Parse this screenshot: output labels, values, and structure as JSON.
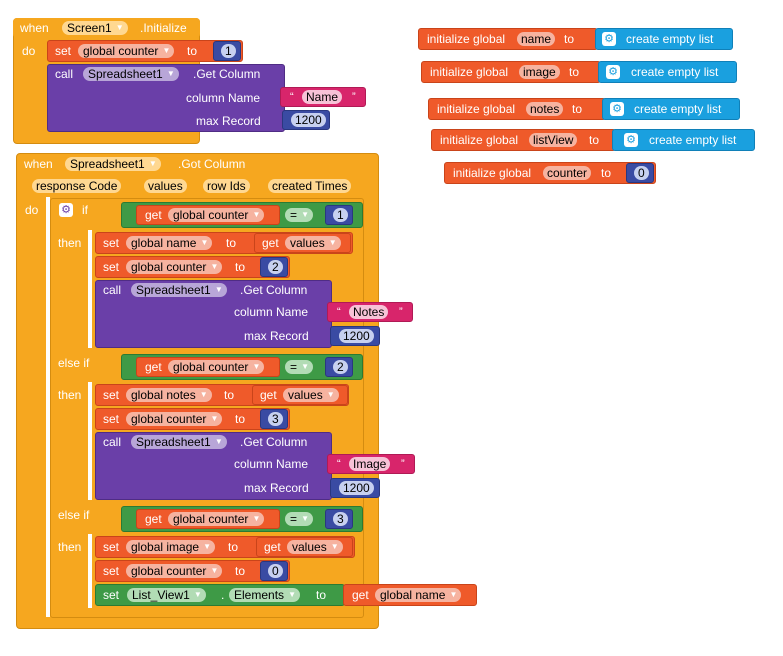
{
  "screen_init": {
    "when": "when",
    "component": "Screen1",
    "event": ".Initialize",
    "do": "do",
    "set": "set",
    "var": "global counter",
    "to": "to",
    "value": "1",
    "call": "call",
    "call_component": "Spreadsheet1",
    "method": ".Get Column",
    "param1_label": "column Name",
    "param1_value": "Name",
    "param2_label": "max Record",
    "param2_value": "1200"
  },
  "globals": [
    {
      "init": "initialize global",
      "name": "name",
      "to": "to",
      "value": "create empty list"
    },
    {
      "init": "initialize global",
      "name": "image",
      "to": "to",
      "value": "create empty list"
    },
    {
      "init": "initialize global",
      "name": "notes",
      "to": "to",
      "value": "create empty list"
    },
    {
      "init": "initialize global",
      "name": "listView",
      "to": "to",
      "value": "create empty list"
    },
    {
      "init": "initialize global",
      "name": "counter",
      "to": "to",
      "value": "0"
    }
  ],
  "got_column": {
    "when": "when",
    "component": "Spreadsheet1",
    "event": ".Got Column",
    "params": [
      "response Code",
      "values",
      "row Ids",
      "created Times"
    ],
    "do": "do",
    "if": "if",
    "then": "then",
    "else_if": "else if",
    "get": "get",
    "set": "set",
    "to": "to",
    "call": "call",
    "eq": "=",
    "call_component": "Spreadsheet1",
    "method": ".Get Column",
    "column_name_label": "column Name",
    "max_record_label": "max Record",
    "branch1": {
      "cond_var": "global counter",
      "cond_value": "1",
      "set1_var": "global name",
      "set1_get": "values",
      "set2_var": "global counter",
      "set2_value": "2",
      "col": "Notes",
      "max": "1200"
    },
    "branch2": {
      "cond_var": "global counter",
      "cond_value": "2",
      "set1_var": "global notes",
      "set1_get": "values",
      "set2_var": "global counter",
      "set2_value": "3",
      "col": "Image",
      "max": "1200"
    },
    "branch3": {
      "cond_var": "global counter",
      "cond_value": "3",
      "set1_var": "global image",
      "set1_get": "values",
      "set2_var": "global counter",
      "set2_value": "0",
      "lv_component": "List_View1",
      "dot": ".",
      "lv_prop": "Elements",
      "lv_get_var": "global name"
    }
  }
}
